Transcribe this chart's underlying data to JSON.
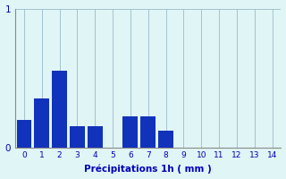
{
  "xlabel": "Précipitations 1h ( mm )",
  "bar_values": [
    0.2,
    0.35,
    0.55,
    0.15,
    0.15,
    0.0,
    0.22,
    0.22,
    0.12,
    0.0,
    0.0,
    0.0,
    0.0,
    0.0,
    0.0
  ],
  "bar_positions": [
    0,
    1,
    2,
    3,
    4,
    5,
    6,
    7,
    8,
    9,
    10,
    11,
    12,
    13,
    14
  ],
  "x_tick_labels": [
    "0",
    "1",
    "2",
    "3",
    "4",
    "5",
    "6",
    "7",
    "8",
    "9",
    "10",
    "11",
    "12",
    "13",
    "14"
  ],
  "ylim": [
    0,
    1
  ],
  "xlim": [
    -0.5,
    14.5
  ],
  "yticks": [
    0,
    1
  ],
  "bar_color": "#1133bb",
  "background_color": "#e0f5f5",
  "grid_color": "#99bbcc",
  "text_color": "#0000bb",
  "bar_width": 0.85,
  "axis_color": "#888888"
}
